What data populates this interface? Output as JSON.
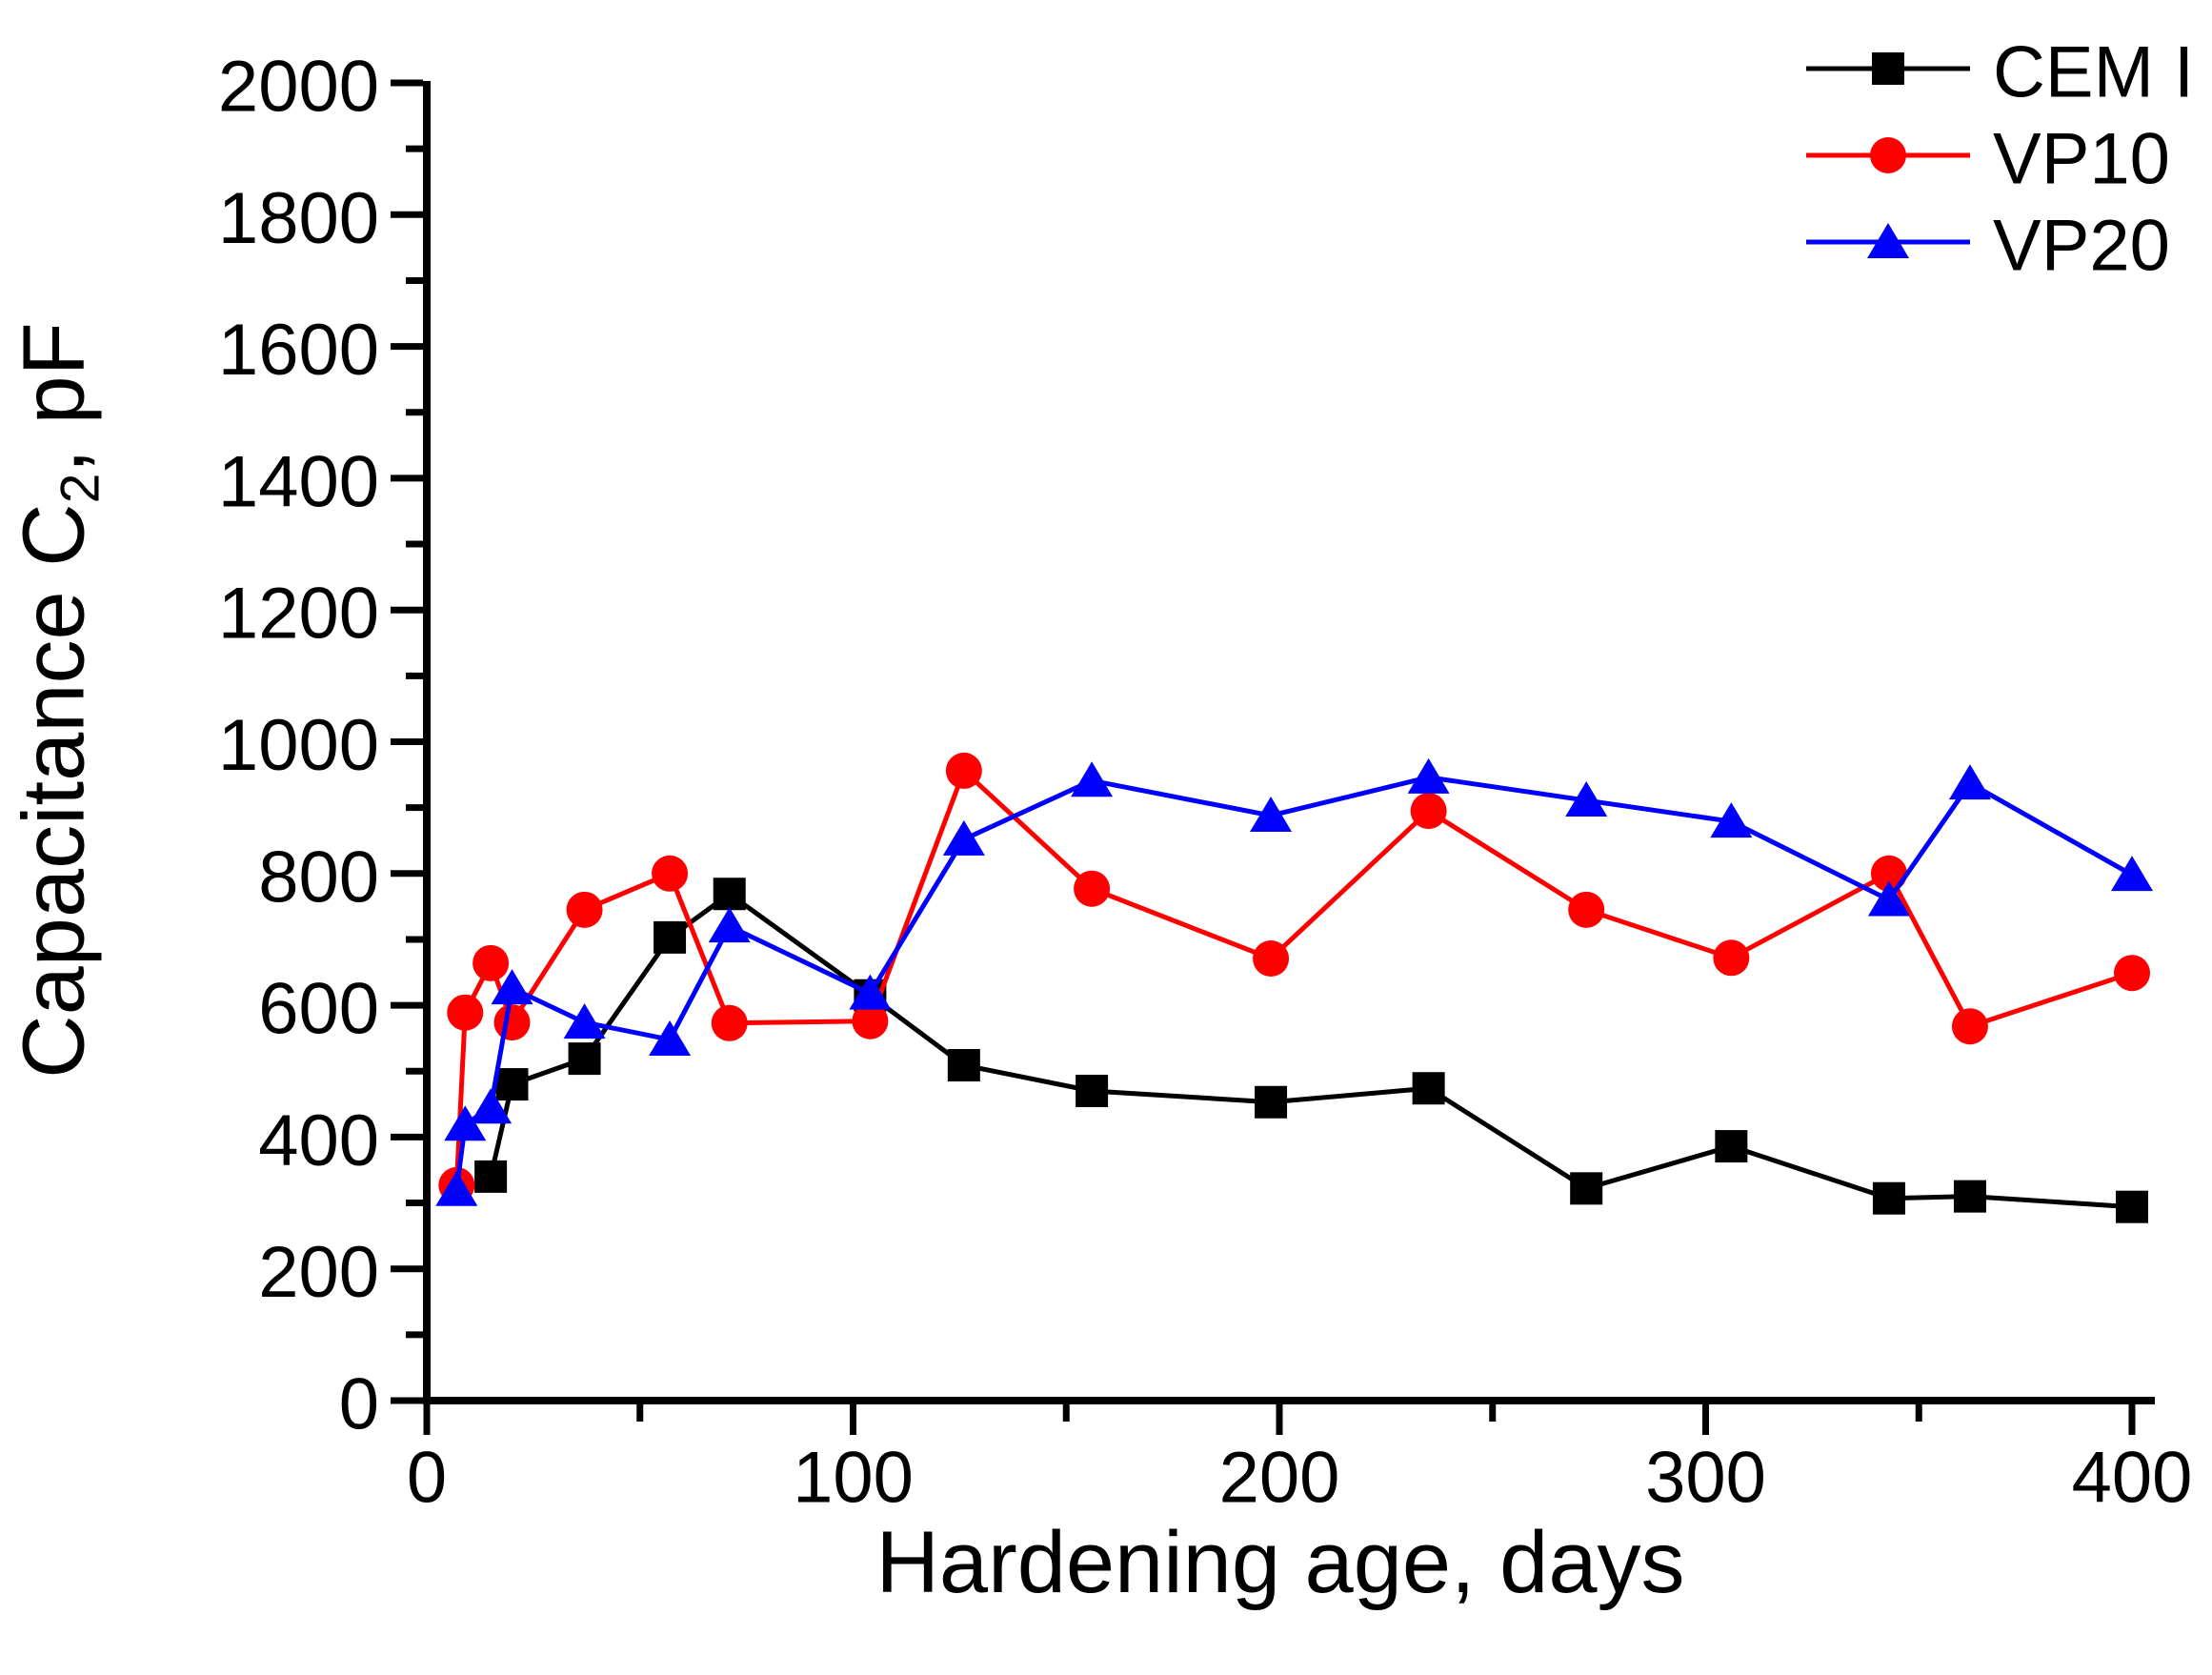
{
  "chart_data": {
    "type": "line",
    "title": "",
    "xlabel": "Hardening age, days",
    "ylabel_main": "Capacitance C",
    "ylabel_sub": "2",
    "ylabel_suffix": ", pF",
    "xlim": [
      0,
      400
    ],
    "ylim": [
      0,
      2000
    ],
    "x_major_ticks": [
      0,
      100,
      200,
      300,
      400
    ],
    "x_minor_ticks": [
      50,
      150,
      250,
      350
    ],
    "y_major_ticks": [
      0,
      200,
      400,
      600,
      800,
      1000,
      1200,
      1400,
      1600,
      1800,
      2000
    ],
    "y_minor_ticks": [
      100,
      300,
      500,
      700,
      900,
      1100,
      1300,
      1500,
      1700,
      1900
    ],
    "grid": false,
    "background": "#ffffff",
    "axis_color": "#000000",
    "legend": {
      "position": "top-right",
      "items": [
        "CEM I",
        "VP10",
        "VP20"
      ]
    },
    "series": [
      {
        "name": "CEM I",
        "color": "#000000",
        "marker": "square",
        "points": [
          [
            15,
            340
          ],
          [
            20,
            480
          ],
          [
            37,
            519
          ],
          [
            57,
            703
          ],
          [
            71,
            769
          ],
          [
            104,
            615
          ],
          [
            126,
            509
          ],
          [
            156,
            470
          ],
          [
            198,
            453
          ],
          [
            235,
            474
          ],
          [
            272,
            322
          ],
          [
            306,
            386
          ],
          [
            343,
            307
          ],
          [
            362,
            310
          ],
          [
            400,
            294
          ]
        ]
      },
      {
        "name": "VP10",
        "color": "#ff0000",
        "marker": "circle",
        "points": [
          [
            7,
            327
          ],
          [
            9,
            589
          ],
          [
            15,
            664
          ],
          [
            20,
            574
          ],
          [
            37,
            745
          ],
          [
            57,
            800
          ],
          [
            71,
            573
          ],
          [
            104,
            576
          ],
          [
            126,
            956
          ],
          [
            156,
            777
          ],
          [
            198,
            671
          ],
          [
            235,
            895
          ],
          [
            272,
            745
          ],
          [
            306,
            672
          ],
          [
            343,
            800
          ],
          [
            362,
            568
          ],
          [
            400,
            649
          ]
        ]
      },
      {
        "name": "VP20",
        "color": "#0000ff",
        "marker": "triangle",
        "points": [
          [
            7,
            320
          ],
          [
            9,
            419
          ],
          [
            15,
            445
          ],
          [
            20,
            626
          ],
          [
            37,
            574
          ],
          [
            57,
            548
          ],
          [
            71,
            720
          ],
          [
            104,
            618
          ],
          [
            126,
            852
          ],
          [
            156,
            941
          ],
          [
            198,
            888
          ],
          [
            235,
            946
          ],
          [
            272,
            911
          ],
          [
            306,
            879
          ],
          [
            343,
            760
          ],
          [
            362,
            937
          ],
          [
            400,
            798
          ]
        ]
      }
    ]
  }
}
